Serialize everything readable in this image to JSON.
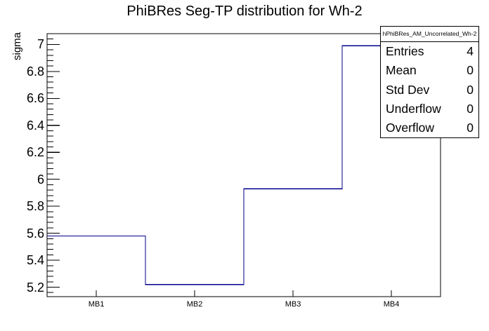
{
  "window": {
    "background": "#ffffff"
  },
  "chart_data": {
    "type": "step-histogram",
    "title": "PhiBRes Seg-TP distribution for Wh-2",
    "ylabel": "sigma",
    "xlabel": "",
    "categories": [
      "MB1",
      "MB2",
      "MB3",
      "MB4"
    ],
    "values": [
      5.58,
      5.22,
      5.93,
      6.99
    ],
    "ylim": [
      5.13,
      7.08
    ],
    "y_major_ticks": [
      5.2,
      5.4,
      5.6,
      5.8,
      6,
      6.2,
      6.4,
      6.6,
      6.8,
      7
    ],
    "y_minor_step": 0.04,
    "line_color": "#00008b",
    "axis_color": "#000000",
    "grid": false,
    "legend_position": "top-right-stats-box"
  },
  "stats_box": {
    "header": "hPhiBRes_AM_Uncorrelated_Wh-2",
    "rows": [
      {
        "label": "Entries",
        "value": "4"
      },
      {
        "label": "Mean",
        "value": "0"
      },
      {
        "label": "Std Dev",
        "value": "0"
      },
      {
        "label": "Underflow",
        "value": "0"
      },
      {
        "label": "Overflow",
        "value": "0"
      }
    ]
  }
}
